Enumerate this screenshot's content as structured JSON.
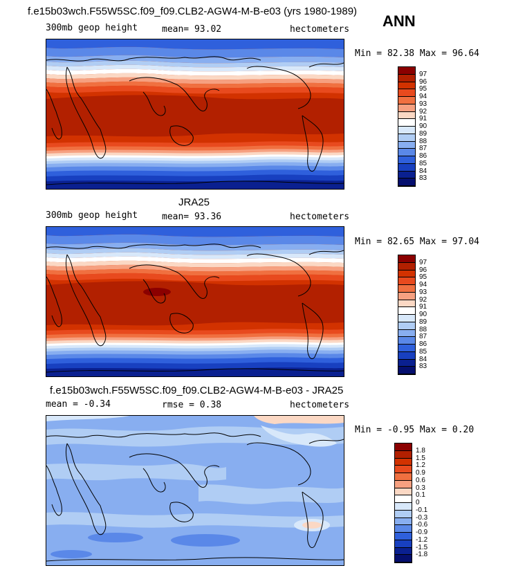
{
  "season": "ANN",
  "panels": [
    {
      "id": "model",
      "title": "f.e15b03wch.F55W5SC.f09_f09.CLB2-AGW4-M-B-e03 (yrs 1980-1989)",
      "variable": "300mb geop height",
      "stat1": "mean=  93.02",
      "stat2": "",
      "units": "hectometers",
      "minmax": "Min =  82.38 Max =  96.64",
      "levels": [
        "97",
        "96",
        "95",
        "94",
        "93",
        "92",
        "91",
        "90",
        "89",
        "88",
        "87",
        "86",
        "85",
        "84",
        "83"
      ],
      "colors": [
        "#8b0000",
        "#b22000",
        "#d23200",
        "#e84a1e",
        "#f07040",
        "#f6a080",
        "#fbd8c4",
        "#ffffff",
        "#d8e8fa",
        "#b0cdf4",
        "#88aef0",
        "#5a88e8",
        "#2f60dc",
        "#1840c0",
        "#0a2090",
        "#050f6e"
      ]
    },
    {
      "id": "obs",
      "title": "JRA25",
      "variable": "300mb geop height",
      "stat1": "mean=  93.36",
      "stat2": "",
      "units": "hectometers",
      "minmax": "Min =  82.65 Max =  97.04",
      "levels": [
        "97",
        "96",
        "95",
        "94",
        "93",
        "92",
        "91",
        "90",
        "89",
        "88",
        "87",
        "86",
        "85",
        "84",
        "83"
      ],
      "colors": [
        "#8b0000",
        "#b22000",
        "#d23200",
        "#e84a1e",
        "#f07040",
        "#f6a080",
        "#fbd8c4",
        "#ffffff",
        "#d8e8fa",
        "#b0cdf4",
        "#88aef0",
        "#5a88e8",
        "#2f60dc",
        "#1840c0",
        "#0a2090",
        "#050f6e"
      ]
    },
    {
      "id": "diff",
      "title": "f.e15b03wch.F55W5SC.f09_f09.CLB2-AGW4-M-B-e03 - JRA25",
      "variable": "",
      "stat1": "mean =  -0.34",
      "stat2": "rmse =   0.38",
      "units": "hectometers",
      "minmax": "Min =  -0.95 Max =   0.20",
      "levels": [
        "1.8",
        "1.5",
        "1.2",
        "0.9",
        "0.6",
        "0.3",
        "0.1",
        "0",
        "-0.1",
        "-0.3",
        "-0.6",
        "-0.9",
        "-1.2",
        "-1.5",
        "-1.8"
      ],
      "colors": [
        "#8b0000",
        "#b22000",
        "#d23200",
        "#e84a1e",
        "#f07040",
        "#f6a080",
        "#fbd8c4",
        "#ffffff",
        "#d8e8fa",
        "#b0cdf4",
        "#88aef0",
        "#5a88e8",
        "#2f60dc",
        "#1840c0",
        "#0a2090",
        "#050f6e"
      ]
    }
  ]
}
